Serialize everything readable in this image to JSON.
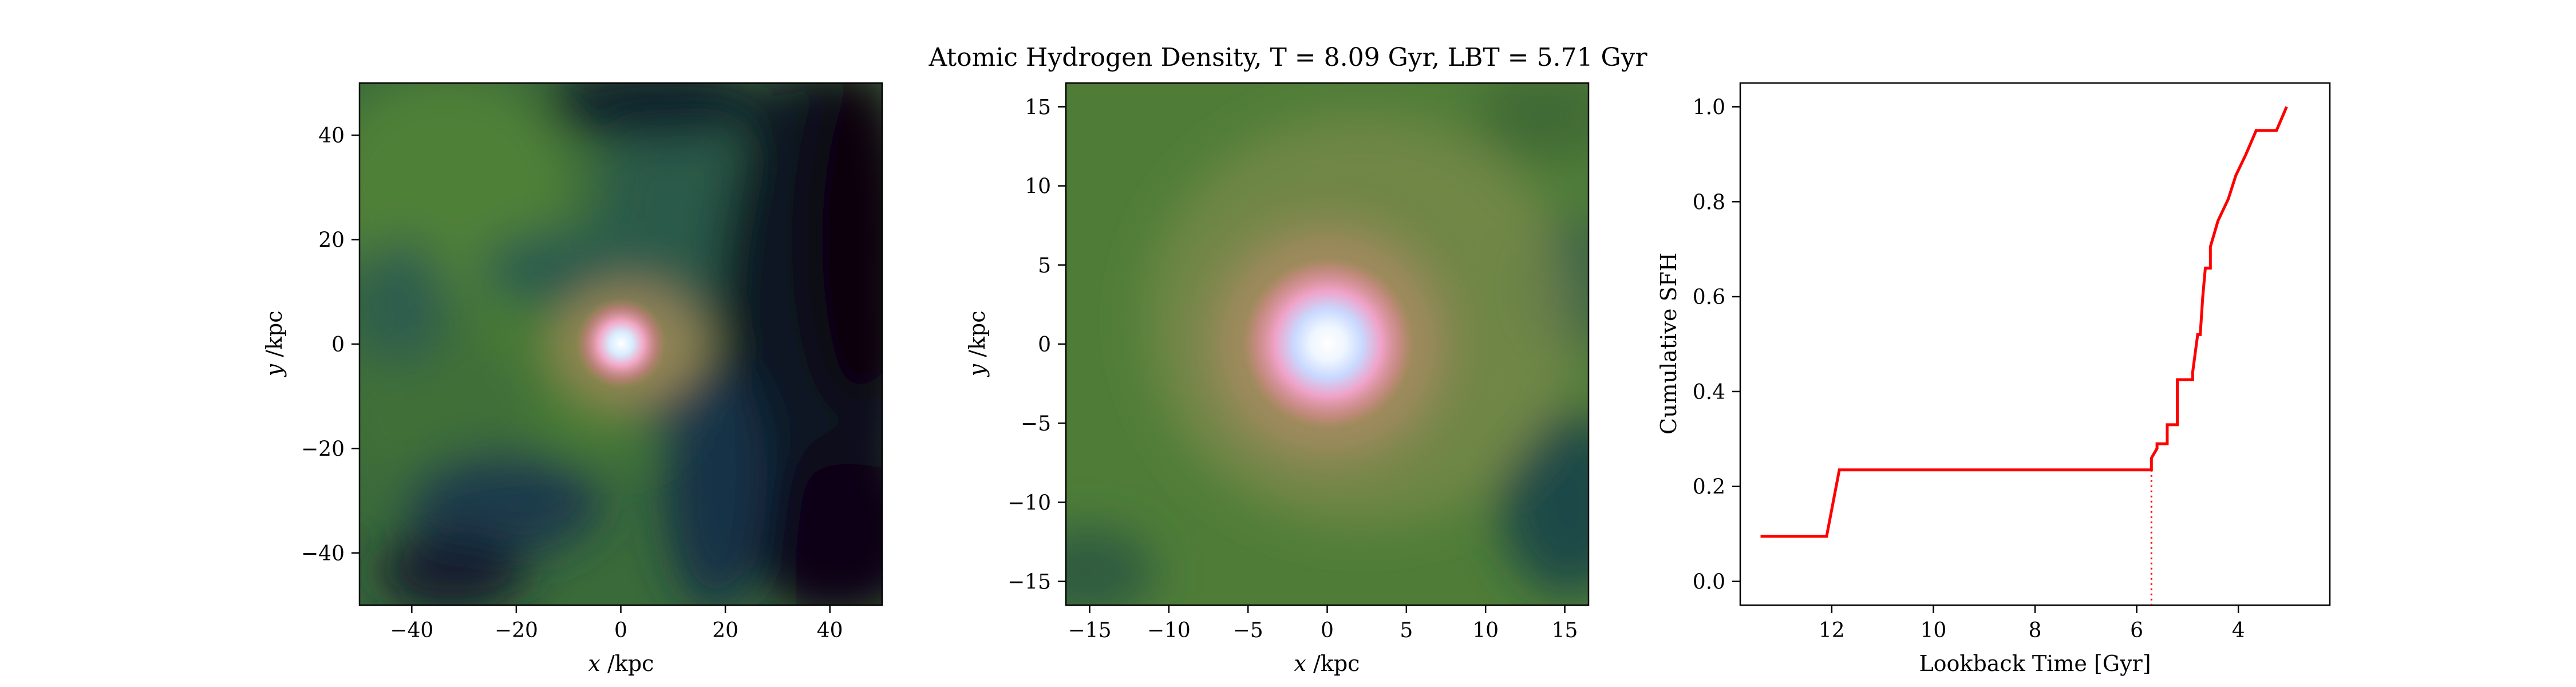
{
  "figure": {
    "title": "Atomic Hydrogen Density, T = 8.09 Gyr, LBT = 5.71 Gyr"
  },
  "chart_data": [
    {
      "type": "heatmap",
      "panel": "left",
      "xlabel": "x / kpc",
      "ylabel": "y / kpc",
      "xlim": [
        -50,
        50
      ],
      "ylim": [
        -50,
        50
      ],
      "xticks": [
        -40,
        -20,
        0,
        20,
        40
      ],
      "yticks": [
        -40,
        -20,
        0,
        20,
        40
      ],
      "xtick_labels": [
        "−40",
        "−20",
        "0",
        "20",
        "40"
      ],
      "ytick_labels": [
        "−40",
        "−20",
        "0",
        "20",
        "40"
      ],
      "colormap": [
        "#0b0510",
        "#173347",
        "#2a5a45",
        "#4a7c35",
        "#b88a75",
        "#f0b0c8",
        "#ffffff"
      ],
      "peak": {
        "x": 0,
        "y": 0
      }
    },
    {
      "type": "heatmap",
      "panel": "middle",
      "xlabel": "x / kpc",
      "ylabel": "y / kpc",
      "xlim": [
        -16.5,
        16.5
      ],
      "ylim": [
        -16.5,
        16.5
      ],
      "xticks": [
        -15,
        -10,
        -5,
        0,
        5,
        10,
        15
      ],
      "yticks": [
        -15,
        -10,
        -5,
        0,
        5,
        10,
        15
      ],
      "xtick_labels": [
        "−15",
        "−10",
        "−5",
        "0",
        "5",
        "10",
        "15"
      ],
      "ytick_labels": [
        "−15",
        "−10",
        "−5",
        "0",
        "5",
        "10",
        "15"
      ],
      "colormap": [
        "#0b0510",
        "#173347",
        "#2a5a45",
        "#4a7c35",
        "#b88a75",
        "#f0b0c8",
        "#ffffff"
      ],
      "peak": {
        "x": 0,
        "y": 0
      }
    },
    {
      "type": "line",
      "panel": "right",
      "xlabel": "Lookback Time [Gyr]",
      "ylabel": "Cumulative SFH",
      "xlim": [
        13.8,
        2.2
      ],
      "ylim": [
        -0.05,
        1.05
      ],
      "xticks": [
        12,
        10,
        8,
        6,
        4
      ],
      "yticks": [
        0.0,
        0.2,
        0.4,
        0.6,
        0.8,
        1.0
      ],
      "xtick_labels": [
        "12",
        "10",
        "8",
        "6",
        "4"
      ],
      "ytick_labels": [
        "0.0",
        "0.2",
        "0.4",
        "0.6",
        "0.8",
        "1.0"
      ],
      "line_color": "#ff0000",
      "series": [
        {
          "x": [
            13.4,
            12.1,
            11.85,
            5.71,
            5.71,
            5.6,
            5.6,
            5.4,
            5.4,
            5.2,
            5.2,
            4.9,
            4.9,
            4.8,
            4.75,
            4.7,
            4.65,
            4.55,
            4.55,
            4.4,
            4.4,
            4.2,
            4.2,
            4.05,
            4.05,
            3.85,
            3.85,
            3.65,
            3.65,
            3.45,
            3.45,
            3.25,
            3.25,
            3.05
          ],
          "y": [
            0.095,
            0.095,
            0.235,
            0.235,
            0.26,
            0.28,
            0.29,
            0.29,
            0.33,
            0.33,
            0.425,
            0.425,
            0.44,
            0.52,
            0.52,
            0.6,
            0.66,
            0.66,
            0.705,
            0.76,
            0.76,
            0.805,
            0.805,
            0.855,
            0.855,
            0.9,
            0.9,
            0.95,
            0.95,
            0.95,
            0.95,
            0.95,
            0.95,
            1.0
          ]
        }
      ],
      "marker_line": {
        "x": 5.71,
        "style": "dotted"
      }
    }
  ]
}
